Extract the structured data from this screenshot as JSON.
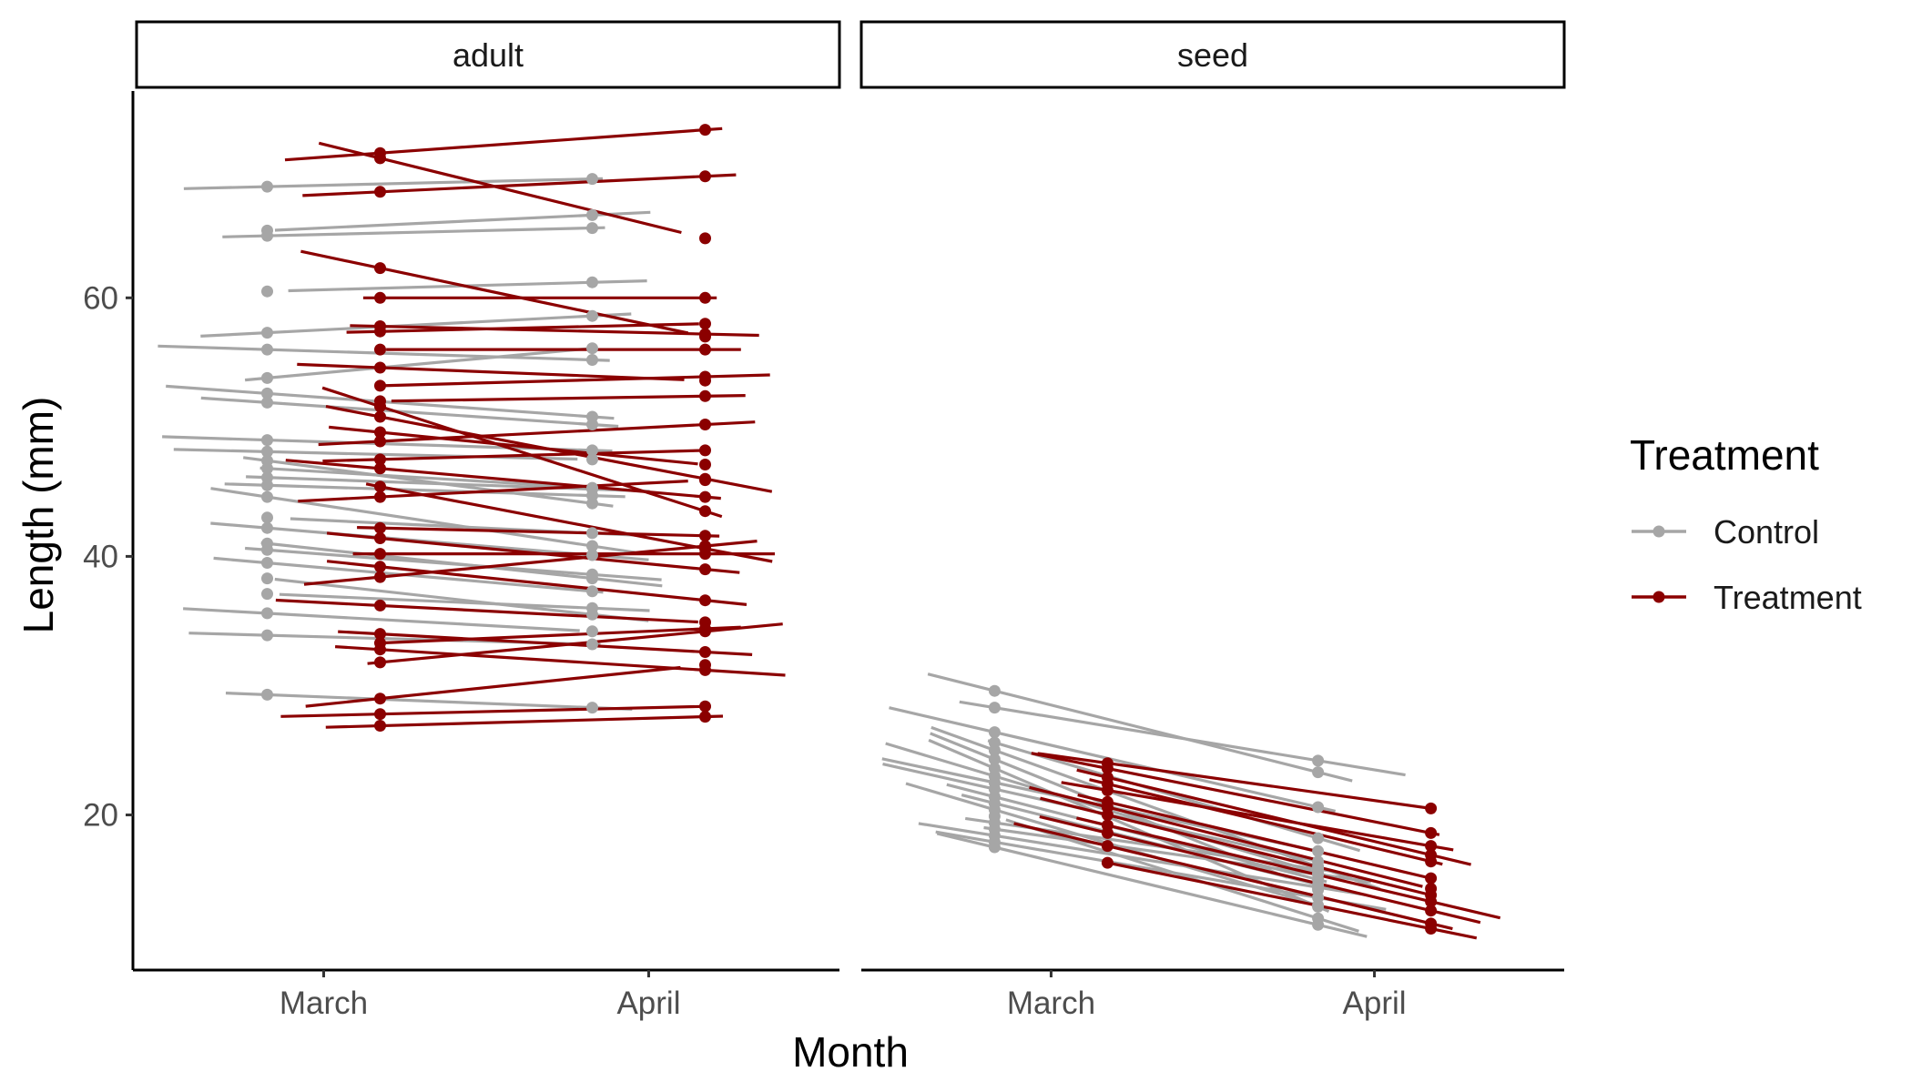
{
  "chart_data": {
    "type": "line",
    "xlabel": "Month",
    "ylabel": "Length (mm)",
    "x_categories": [
      "March",
      "April"
    ],
    "y_ticks": [
      20,
      40,
      60
    ],
    "ylim": [
      8,
      76
    ],
    "grid": false,
    "colors": {
      "Control": "#a6a6a6",
      "Treatment": "#8b0000"
    },
    "legend": {
      "title": "Treatment",
      "position": "right",
      "entries": [
        "Control",
        "Treatment"
      ]
    },
    "panels": [
      {
        "name": "adult",
        "series": [
          {
            "group": "Control",
            "pairs": [
              [
                68.6,
                69.2
              ],
              [
                65.2,
                66.4
              ],
              [
                64.8,
                65.4
              ],
              [
                60.5,
                61.2
              ],
              [
                57.3,
                58.6
              ],
              [
                56.0,
                55.2
              ],
              [
                53.8,
                56.1
              ],
              [
                52.6,
                50.8
              ],
              [
                51.9,
                50.2
              ],
              [
                49.0,
                48.2
              ],
              [
                48.1,
                47.5
              ],
              [
                47.4,
                44.1
              ],
              [
                46.8,
                45.3
              ],
              [
                46.1,
                45.2
              ],
              [
                45.5,
                44.7
              ],
              [
                44.6,
                40.8
              ],
              [
                43.0,
                41.8
              ],
              [
                42.2,
                40.1
              ],
              [
                41.0,
                38.3
              ],
              [
                40.5,
                38.6
              ],
              [
                39.5,
                37.3
              ],
              [
                38.3,
                35.5
              ],
              [
                37.1,
                36.0
              ],
              [
                35.6,
                34.2
              ],
              [
                33.9,
                33.2
              ],
              [
                29.3,
                28.3
              ]
            ]
          },
          {
            "group": "Treatment",
            "pairs": [
              [
                71.2,
                73.0
              ],
              [
                70.8,
                64.6
              ],
              [
                68.2,
                69.4
              ],
              [
                62.3,
                57.0
              ],
              [
                60.0,
                60.0
              ],
              [
                57.8,
                57.2
              ],
              [
                57.4,
                58.0
              ],
              [
                56.0,
                56.0
              ],
              [
                54.6,
                53.6
              ],
              [
                53.2,
                53.9
              ],
              [
                52.0,
                52.4
              ],
              [
                51.6,
                43.5
              ],
              [
                50.8,
                46.0
              ],
              [
                49.6,
                47.1
              ],
              [
                48.9,
                50.2
              ],
              [
                47.5,
                48.2
              ],
              [
                46.8,
                44.6
              ],
              [
                45.4,
                40.6
              ],
              [
                44.6,
                45.9
              ],
              [
                42.2,
                41.6
              ],
              [
                41.4,
                39.0
              ],
              [
                40.2,
                40.2
              ],
              [
                39.2,
                36.6
              ],
              [
                38.4,
                40.8
              ],
              [
                36.2,
                34.9
              ],
              [
                34.0,
                32.6
              ],
              [
                33.3,
                34.4
              ],
              [
                32.8,
                31.2
              ],
              [
                31.8,
                34.2
              ],
              [
                29.0,
                31.6
              ],
              [
                27.8,
                28.4
              ],
              [
                26.9,
                27.6
              ]
            ]
          }
        ]
      },
      {
        "name": "seed",
        "series": [
          {
            "group": "Control",
            "pairs": [
              [
                29.6,
                23.3
              ],
              [
                28.3,
                24.2
              ],
              [
                26.4,
                20.6
              ],
              [
                25.6,
                18.2
              ],
              [
                25.0,
                16.0
              ],
              [
                24.3,
                14.2
              ],
              [
                23.6,
                12.9
              ],
              [
                23.0,
                15.5
              ],
              [
                22.5,
                17.2
              ],
              [
                22.0,
                16.4
              ],
              [
                21.4,
                15.0
              ],
              [
                20.9,
                14.6
              ],
              [
                20.4,
                13.0
              ],
              [
                19.9,
                12.0
              ],
              [
                19.4,
                15.8
              ],
              [
                18.9,
                15.4
              ],
              [
                18.4,
                14.4
              ],
              [
                17.9,
                13.6
              ],
              [
                17.5,
                11.5
              ]
            ]
          },
          {
            "group": "Treatment",
            "pairs": [
              [
                24.0,
                20.5
              ],
              [
                23.6,
                18.6
              ],
              [
                22.9,
                16.9
              ],
              [
                22.4,
                16.4
              ],
              [
                21.9,
                17.6
              ],
              [
                21.0,
                15.1
              ],
              [
                20.6,
                14.3
              ],
              [
                20.0,
                13.8
              ],
              [
                19.2,
                13.3
              ],
              [
                18.6,
                12.6
              ],
              [
                17.6,
                11.6
              ],
              [
                16.3,
                11.2
              ]
            ]
          }
        ]
      }
    ]
  }
}
